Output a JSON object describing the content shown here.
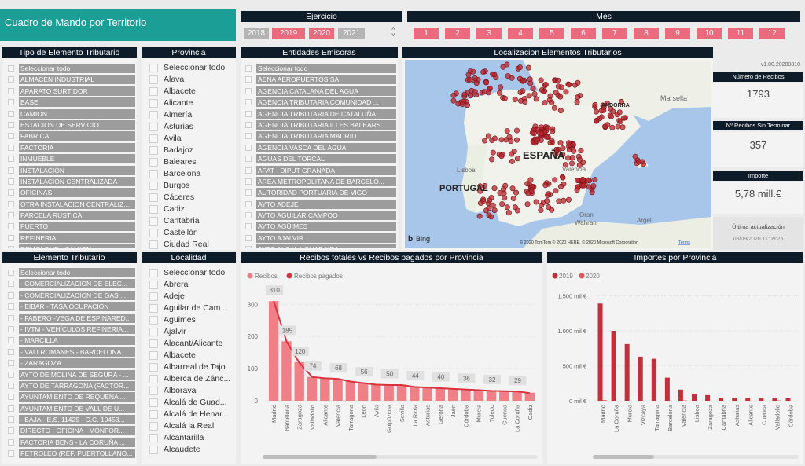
{
  "title": "Cuadro de Mando por Territorio",
  "ejercicio": {
    "header": "Ejercicio",
    "years": [
      {
        "label": "2018",
        "selected": false
      },
      {
        "label": "2019",
        "selected": true
      },
      {
        "label": "2020",
        "selected": true
      },
      {
        "label": "2021",
        "selected": false
      }
    ]
  },
  "mes": {
    "header": "Mes",
    "months": [
      "1",
      "2",
      "3",
      "4",
      "5",
      "6",
      "7",
      "8",
      "9",
      "10",
      "11",
      "12"
    ]
  },
  "tipo": {
    "header": "Tipo de Elemento Tributario",
    "items": [
      "Seleccionar todo",
      "ALMACEN INDUSTRIAL",
      "APARATO SURTIDOR",
      "BASE",
      "CAMION",
      "ESTACION DE SERVICIO",
      "FABRICA",
      "FACTORIA",
      "INMUEBLE",
      "INSTALACION",
      "INSTALACION CENTRALIZADA",
      "OFICINAS",
      "OTRA INSTALACION CENTRALIZ...",
      "PARCELA RUSTICA",
      "PUERTO",
      "REFINERIA",
      "REMOLQUE - CAMION"
    ]
  },
  "provincia": {
    "header": "Provincia",
    "items": [
      "Seleccionar todo",
      "Alava",
      "Albacete",
      "Alicante",
      "Almería",
      "Asturias",
      "Avila",
      "Badajoz",
      "Baleares",
      "Barcelona",
      "Burgos",
      "Cáceres",
      "Cadiz",
      "Cantabria",
      "Castellón",
      "Ciudad Real"
    ]
  },
  "entidades": {
    "header": "Entidades Emisoras",
    "items": [
      "Seleccionar todo",
      "AENA AEROPUERTOS SA",
      "AGENCIA CATALANA DEL AGUA",
      "AGENCIA TRIBUTARIA COMUNIDAD ...",
      "AGENCIA TRIBUTARIA DE CATALUÑA",
      "AGENCIA TRIBUTARIA ILLES BALEARS",
      "AGENCIA TRIBUTARIA MADRID",
      "AGENCIA VASCA DEL AGUA",
      "AGUAS DEL TORCAL",
      "APAT - DIPUT GRANADA",
      "AREA METROPOLITANA DE BARCELO...",
      "AUTORIDAD PORTUARIA DE VIGO",
      "AYTO ADEJE",
      "AYTO AGUILAR CAMPOO",
      "AYTO AGÜIMES",
      "AYTO AJALVIR",
      "AYTO ALCALA GUADAIRA"
    ]
  },
  "map": {
    "header": "Localizacion Elementos Tributarios",
    "labels": {
      "espana": "ESPAÑA",
      "portugal": "PORTUGAL",
      "andorra": "ANDORRA",
      "lisboa": "Lisboa",
      "marsella": "Marsella",
      "valencia": "Valencia",
      "oran": "Oran",
      "wahran": "Wahran",
      "argel": "Argel"
    },
    "bing": "Bing",
    "copyright": "© 2020 TomTom © 2020 HERE, © 2020 Microsoft Corporation",
    "terms": "Terms"
  },
  "kpis": {
    "version": "v1.00.20200810",
    "recibos_label": "Número de Recibos",
    "recibos": "1793",
    "sin_terminar_label": "Nº Recibos Sin Terminar",
    "sin_terminar": "357",
    "importe_label": "Importe",
    "importe": "5,78 mill.€",
    "ultima_label": "Última actualización",
    "ultima": "08/09/2020 11:09:26"
  },
  "elemento": {
    "header": "Elemento Tributario",
    "items": [
      "Seleccionar todo",
      "- COMERCIALIZACION DE ELEC...",
      "- COMERCIALIZACION DE GAS ...",
      "- EIBAR - TASA OCUPACIÓN",
      "- FABERO -VEGA DE ESPINARED...",
      "- IVTM - VEHÍCULOS REFINERIA...",
      "- MARCILLA",
      "- VALLROMANES - BARCELONA",
      "- ZARAGOZA",
      "AYTO DE MOLINA DE SEGURA - ...",
      "AYTO DE TARRAGONA (FACTOR...",
      "AYUNTAMIENTO DE REQUENA ...",
      "AYUNTAMIENTO DE VALL DE U...",
      "- BAJA - E.S. 11425 - C.C. 10453...",
      "DIRECTO - OFICINA - MONFOR...",
      "FACTORIA BENS - LA CORUÑA ...",
      "PETROLEO (REF. PUERTOLLANO..."
    ]
  },
  "localidad": {
    "header": "Localidad",
    "items": [
      "Seleccionar todo",
      "Abrera",
      "Adeje",
      "Aguilar de Cam...",
      "Agüimes",
      "Ajalvir",
      "Alacant/Alicante",
      "Albacete",
      "Albarreal de Tajo",
      "Alberca de Zánc...",
      "Alboraya",
      "Alcalá de Guad...",
      "Alcalá de Henar...",
      "Alcalá la Real",
      "Alcantarilla",
      "Alcaudete"
    ]
  },
  "colors": {
    "header": "#0e1b28",
    "teal": "#1a9e96",
    "pink": "#ec6a7e",
    "bar1": "#f08088",
    "line1": "#d9333f",
    "bar2019": "#c0313c",
    "bar2020": "#e8575f"
  },
  "chart_data": [
    {
      "type": "bar",
      "title": "Recibos totales vs Recibos pagados por Provincia",
      "legend": [
        "Recibos",
        "Recibos pagados"
      ],
      "legend_position": "top-left",
      "categories": [
        "Madrid",
        "Barcelona",
        "Zaragoza",
        "Valladolid",
        "Alicante",
        "Valencia",
        "Tarragona",
        "León",
        "Avila",
        "Guipúzcoa",
        "Sevilla",
        "La Rioja",
        "Asturias",
        "Gerona",
        "Jaén",
        "Córdoba",
        "Murcia",
        "Toledo",
        "Cuenca",
        "La Coruña",
        "Cadiz"
      ],
      "series": [
        {
          "name": "Recibos",
          "type": "bar",
          "values": [
            310,
            185,
            120,
            74,
            70,
            68,
            60,
            56,
            52,
            50,
            50,
            44,
            42,
            40,
            38,
            36,
            34,
            32,
            30,
            29,
            25
          ]
        },
        {
          "name": "Recibos pagados",
          "type": "line",
          "values": [
            310,
            185,
            118,
            74,
            70,
            68,
            60,
            55,
            50,
            49,
            49,
            43,
            41,
            39,
            37,
            35,
            33,
            31,
            30,
            29,
            24
          ]
        }
      ],
      "data_labels": [
        {
          "index": 0,
          "text": "310"
        },
        {
          "index": 1,
          "text": "185"
        },
        {
          "index": 2,
          "text": "120"
        },
        {
          "index": 3,
          "text": "74"
        },
        {
          "index": 5,
          "text": "68"
        },
        {
          "index": 7,
          "text": "56"
        },
        {
          "index": 9,
          "text": "50"
        },
        {
          "index": 11,
          "text": "44"
        },
        {
          "index": 13,
          "text": "40"
        },
        {
          "index": 15,
          "text": "36"
        },
        {
          "index": 17,
          "text": "32"
        },
        {
          "index": 19,
          "text": "29"
        }
      ],
      "yticks": [
        {
          "v": 0,
          "label": "0"
        },
        {
          "v": 100,
          "label": "100"
        },
        {
          "v": 200,
          "label": "200"
        },
        {
          "v": 300,
          "label": "300"
        }
      ],
      "ylim": [
        0,
        330
      ],
      "grid": true
    },
    {
      "type": "bar",
      "title": "Importes por Provincia",
      "legend": [
        "2019",
        "2020"
      ],
      "legend_position": "top-left",
      "categories": [
        "Madrid",
        "La Coruña",
        "Murcia",
        "Vizcaya",
        "Tarragona",
        "Barcelona",
        "Valencia",
        "Lisboa",
        "Zaragoza",
        "Cantabria",
        "Asturias",
        "Alicante",
        "Cuenca",
        "Valladolid",
        "Córdoba"
      ],
      "series": [
        {
          "name": "2019",
          "values": [
            1390,
            1000,
            810,
            630,
            600,
            330,
            160,
            100,
            80,
            45,
            45,
            45,
            40,
            35,
            35
          ]
        },
        {
          "name": "2020",
          "values": [
            10,
            0,
            0,
            0,
            0,
            0,
            5,
            0,
            0,
            0,
            0,
            0,
            0,
            5,
            0
          ]
        }
      ],
      "yticks": [
        {
          "v": 0,
          "label": "0 mil €"
        },
        {
          "v": 500,
          "label": "500 mil €"
        },
        {
          "v": 1000,
          "label": "1.000 mil €"
        },
        {
          "v": 1500,
          "label": "1.500 mil €"
        }
      ],
      "ylim": [
        0,
        1550
      ],
      "grid": true
    }
  ]
}
